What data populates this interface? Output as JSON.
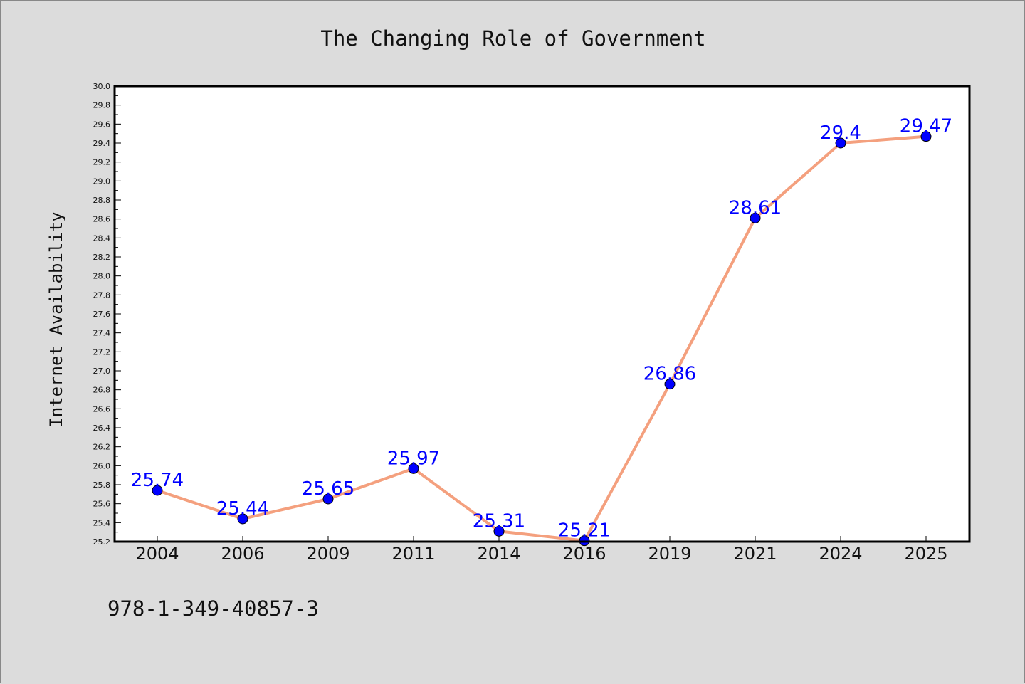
{
  "chart_data": {
    "type": "line",
    "title": "The Changing Role of Government",
    "xlabel": "",
    "ylabel": "Internet Availability",
    "categories": [
      "2004",
      "2006",
      "2009",
      "2011",
      "2014",
      "2016",
      "2019",
      "2021",
      "2024",
      "2025"
    ],
    "series": [
      {
        "values": [
          25.74,
          25.44,
          25.65,
          25.97,
          25.31,
          25.21,
          26.86,
          28.61,
          29.4,
          29.47
        ],
        "labels": [
          "25.74",
          "25.44",
          "25.65",
          "25.97",
          "25.31",
          "25.21",
          "26.86",
          "28.61",
          "29.4",
          "29.47"
        ]
      }
    ],
    "ylim": [
      25.2,
      30.0
    ],
    "yticks": [
      "25.2",
      "25.4",
      "25.6",
      "25.8",
      "26.0",
      "26.2",
      "26.4",
      "26.6",
      "26.8",
      "27.0",
      "27.2",
      "27.4",
      "27.6",
      "27.8",
      "28.0",
      "28.2",
      "28.4",
      "28.6",
      "28.8",
      "29.0",
      "29.2",
      "29.4",
      "29.6",
      "29.8",
      "30.0"
    ],
    "grid": false,
    "legend": "none",
    "line_color": "#f4a07e",
    "marker_color": "#0000ff",
    "label_color": "#0000ff"
  },
  "footer": {
    "isbn": "978-1-349-40857-3"
  }
}
